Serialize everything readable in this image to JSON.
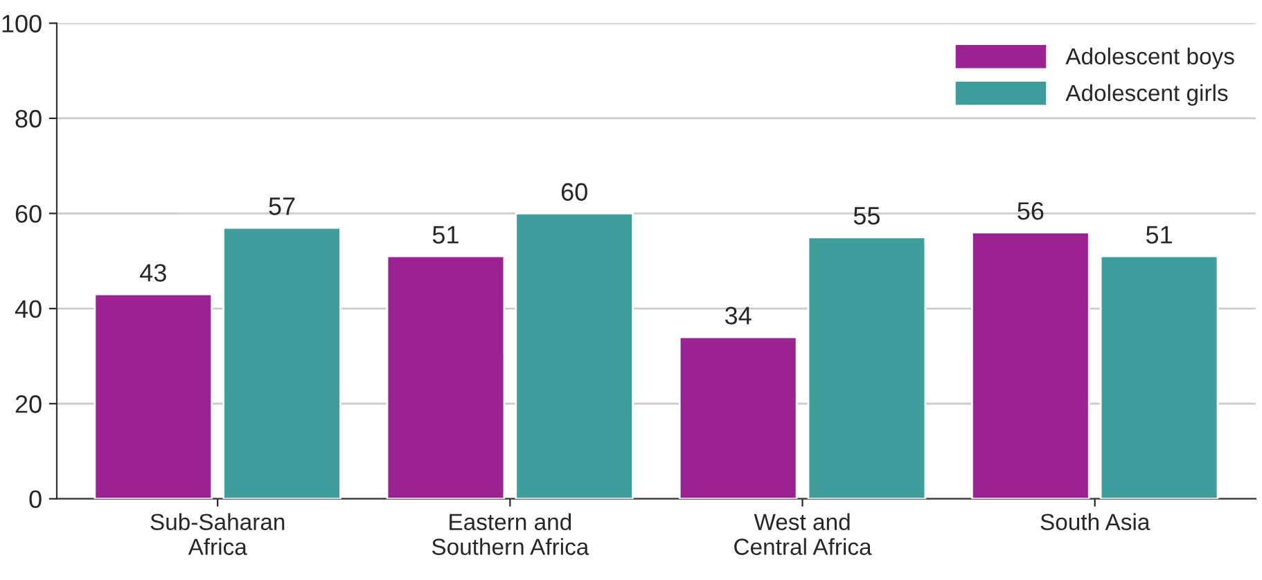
{
  "chart_data": {
    "type": "bar",
    "categories": [
      "Sub-Saharan\nAfrica",
      "Eastern and\nSouthern Africa",
      "West and\nCentral Africa",
      "South Asia"
    ],
    "series": [
      {
        "name": "Adolescent boys",
        "color": "#9b2391",
        "values": [
          43,
          51,
          34,
          56
        ]
      },
      {
        "name": "Adolescent girls",
        "color": "#3f9e9c",
        "values": [
          57,
          60,
          55,
          51
        ]
      }
    ],
    "ylim": [
      0,
      100
    ],
    "yticks": [
      0,
      20,
      40,
      60,
      80,
      100
    ],
    "grid": "y",
    "legend": "top right",
    "data_labels": true
  }
}
